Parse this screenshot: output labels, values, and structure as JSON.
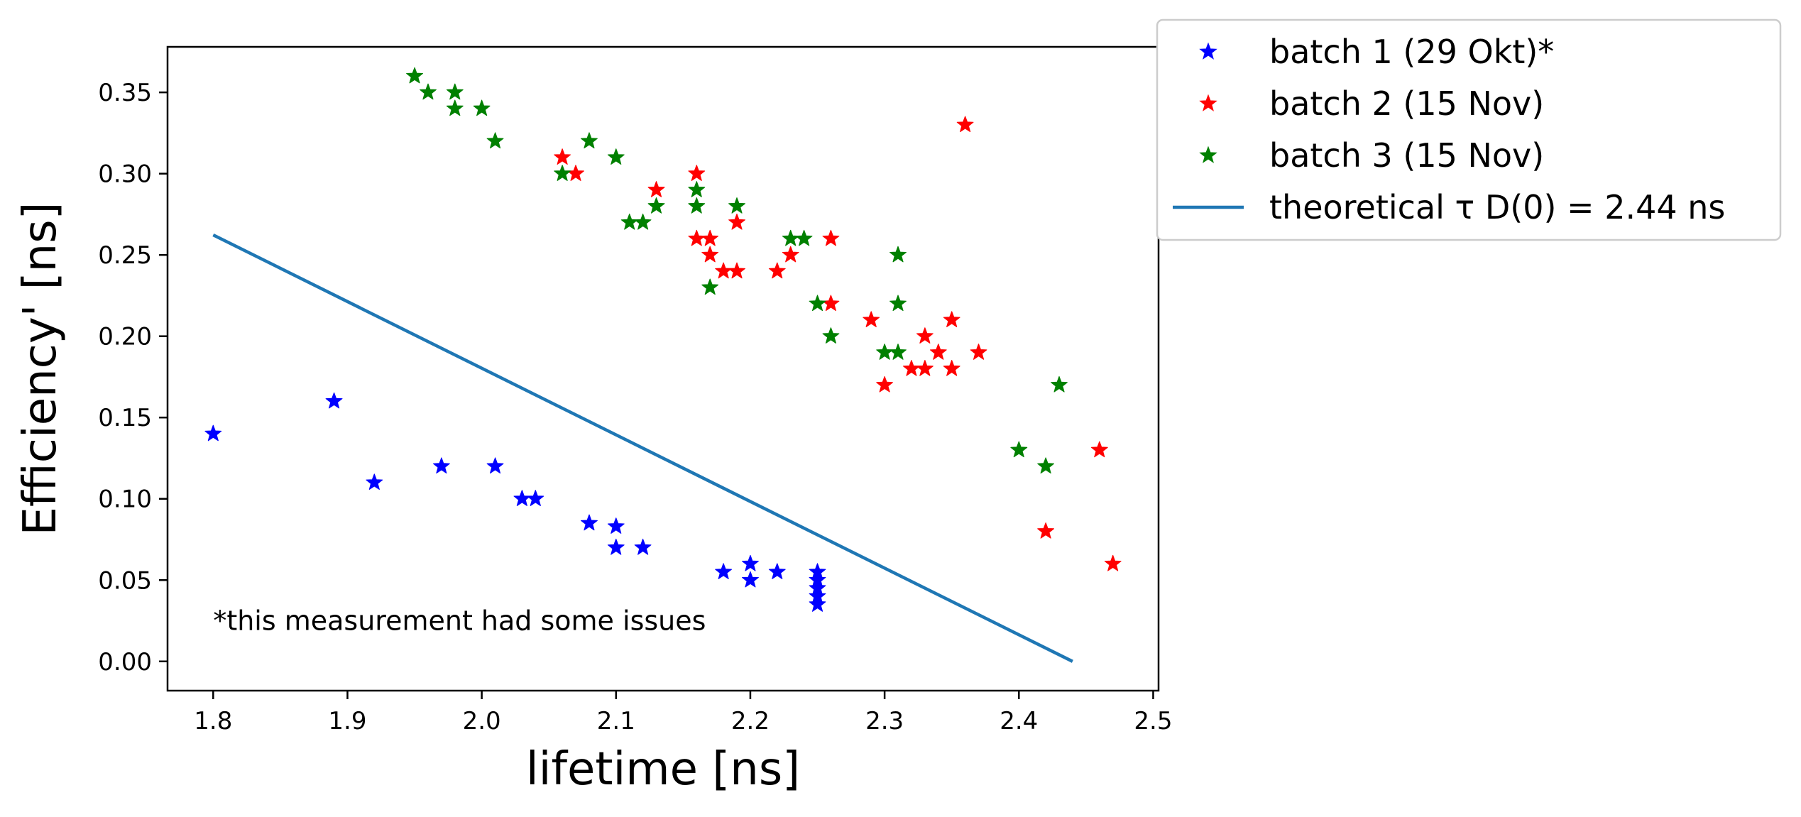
{
  "chart_data": {
    "type": "scatter",
    "xlabel": "lifetime [ns]",
    "ylabel": "Efficiency' [ns]",
    "xlim": [
      1.766,
      2.504
    ],
    "ylim": [
      -0.018,
      0.378
    ],
    "xticks": [
      1.8,
      1.9,
      2.0,
      2.1,
      2.2,
      2.3,
      2.4,
      2.5
    ],
    "xtick_labels": [
      "1.8",
      "1.9",
      "2.0",
      "2.1",
      "2.2",
      "2.3",
      "2.4",
      "2.5"
    ],
    "yticks": [
      0.0,
      0.05,
      0.1,
      0.15,
      0.2,
      0.25,
      0.3,
      0.35
    ],
    "ytick_labels": [
      "0.00",
      "0.05",
      "0.10",
      "0.15",
      "0.20",
      "0.25",
      "0.30",
      "0.35"
    ],
    "grid": false,
    "legend_position": "outside-top-right",
    "annotation": "*this measurement had some issues",
    "series": [
      {
        "name": "batch 1 (29 Okt)*",
        "marker": "star",
        "color": "#0000ff",
        "points": [
          [
            1.8,
            0.14
          ],
          [
            1.89,
            0.16
          ],
          [
            1.92,
            0.11
          ],
          [
            1.97,
            0.12
          ],
          [
            2.01,
            0.12
          ],
          [
            2.03,
            0.1
          ],
          [
            2.04,
            0.1
          ],
          [
            2.08,
            0.085
          ],
          [
            2.1,
            0.083
          ],
          [
            2.1,
            0.07
          ],
          [
            2.12,
            0.07
          ],
          [
            2.18,
            0.055
          ],
          [
            2.2,
            0.06
          ],
          [
            2.2,
            0.05
          ],
          [
            2.22,
            0.055
          ],
          [
            2.25,
            0.055
          ],
          [
            2.25,
            0.05
          ],
          [
            2.25,
            0.045
          ],
          [
            2.25,
            0.04
          ],
          [
            2.25,
            0.035
          ]
        ]
      },
      {
        "name": "batch 2 (15 Nov)",
        "marker": "star",
        "color": "#ff0000",
        "points": [
          [
            2.06,
            0.31
          ],
          [
            2.07,
            0.3
          ],
          [
            2.13,
            0.29
          ],
          [
            2.16,
            0.3
          ],
          [
            2.16,
            0.26
          ],
          [
            2.17,
            0.26
          ],
          [
            2.17,
            0.25
          ],
          [
            2.18,
            0.24
          ],
          [
            2.19,
            0.24
          ],
          [
            2.19,
            0.27
          ],
          [
            2.22,
            0.24
          ],
          [
            2.23,
            0.25
          ],
          [
            2.26,
            0.26
          ],
          [
            2.26,
            0.22
          ],
          [
            2.29,
            0.21
          ],
          [
            2.3,
            0.17
          ],
          [
            2.32,
            0.18
          ],
          [
            2.33,
            0.18
          ],
          [
            2.33,
            0.2
          ],
          [
            2.34,
            0.19
          ],
          [
            2.35,
            0.21
          ],
          [
            2.35,
            0.18
          ],
          [
            2.36,
            0.33
          ],
          [
            2.37,
            0.19
          ],
          [
            2.42,
            0.08
          ],
          [
            2.46,
            0.13
          ],
          [
            2.47,
            0.06
          ]
        ]
      },
      {
        "name": "batch 3 (15 Nov)",
        "marker": "star",
        "color": "#008000",
        "points": [
          [
            1.95,
            0.36
          ],
          [
            1.96,
            0.35
          ],
          [
            1.98,
            0.35
          ],
          [
            1.98,
            0.34
          ],
          [
            2.0,
            0.34
          ],
          [
            2.01,
            0.32
          ],
          [
            2.06,
            0.3
          ],
          [
            2.08,
            0.32
          ],
          [
            2.1,
            0.31
          ],
          [
            2.11,
            0.27
          ],
          [
            2.12,
            0.27
          ],
          [
            2.13,
            0.28
          ],
          [
            2.16,
            0.29
          ],
          [
            2.16,
            0.28
          ],
          [
            2.17,
            0.23
          ],
          [
            2.19,
            0.28
          ],
          [
            2.23,
            0.26
          ],
          [
            2.24,
            0.26
          ],
          [
            2.25,
            0.22
          ],
          [
            2.26,
            0.2
          ],
          [
            2.3,
            0.19
          ],
          [
            2.31,
            0.19
          ],
          [
            2.31,
            0.25
          ],
          [
            2.31,
            0.22
          ],
          [
            2.4,
            0.13
          ],
          [
            2.42,
            0.12
          ],
          [
            2.43,
            0.17
          ]
        ]
      },
      {
        "name": "theoretical τ D(0) = 2.44 ns",
        "marker": "line",
        "color": "#1f77b4",
        "points": [
          [
            1.8,
            0.2623
          ],
          [
            2.44,
            0.0
          ]
        ]
      }
    ]
  }
}
